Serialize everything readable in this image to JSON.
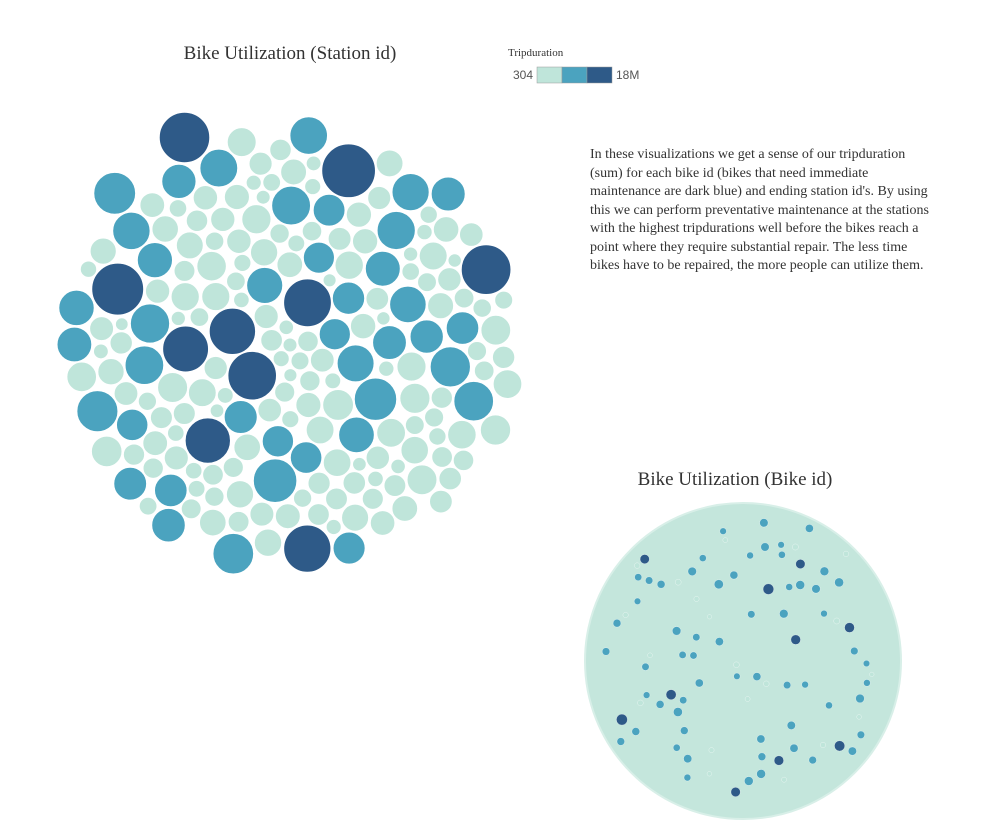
{
  "chart_data": [
    {
      "type": "packed-bubble",
      "title": "Bike Utilization (Station id)",
      "values": [
        18000000,
        16800000,
        15900000,
        15400000,
        14700000,
        14200000,
        13900000,
        13400000,
        13100000,
        12800000,
        11800000,
        11200000,
        10900000,
        10500000,
        10100000,
        9800000,
        9600000,
        9300000,
        9100000,
        8900000,
        8700000,
        8500000,
        8300000,
        8100000,
        7900000,
        7800000,
        7600000,
        7500000,
        7300000,
        7200000,
        7100000,
        6900000,
        6800000,
        6700000,
        6600000,
        6500000,
        6400000,
        6300000,
        6200000,
        6150000,
        6100000,
        6050000,
        6000000,
        9400000,
        8800000,
        7700000,
        7000000,
        6600000,
        10300000,
        8600000,
        5800000,
        5600000,
        5400000,
        5200000,
        5000000,
        4800000,
        4600000,
        4400000,
        4200000,
        4000000,
        3900000,
        3800000,
        3700000,
        3600000,
        3500000,
        3400000,
        3300000,
        3200000,
        3100000,
        3000000,
        2900000,
        2800000,
        2700000,
        2600000,
        2500000,
        2400000,
        2300000,
        2200000,
        2100000,
        2000000,
        1900000,
        1800000,
        1700000,
        1600000,
        1500000,
        1400000,
        1300000,
        1200000,
        1100000,
        1000000,
        5700000,
        5300000,
        4900000,
        4500000,
        4100000,
        3750000,
        3450000,
        3150000,
        2850000,
        2550000,
        2250000,
        1950000,
        1650000,
        1350000,
        1050000,
        5500000,
        5100000,
        4700000,
        4300000,
        3950000,
        3650000,
        3350000,
        3050000,
        2750000,
        2450000,
        2150000,
        1850000,
        1550000,
        1250000,
        1150000,
        4050000,
        3850000,
        3550000,
        3250000,
        2950000,
        2650000,
        2350000,
        2050000,
        1750000,
        1450000,
        5900000,
        5450000,
        4950000,
        4550000,
        4150000,
        3800000,
        3500000,
        3200000,
        2900000,
        2600000,
        2300000,
        2000000,
        1700000,
        1400000,
        1100000,
        4800000,
        4400000,
        3900000,
        3400000,
        2950000,
        2500000,
        2100000,
        1800000,
        1500000,
        1200000,
        5250000,
        4650000,
        4250000,
        3700000,
        3300000,
        2800000,
        2400000,
        1900000,
        1600000,
        1300000,
        5050000,
        4750000,
        4350000,
        3600000,
        3100000,
        2700000,
        2200000,
        1750000,
        1450000,
        1150000,
        5550000,
        4850000,
        4450000,
        3950000,
        3450000,
        3000000,
        2550000,
        2150000,
        1850000,
        1350000,
        5650000,
        5150000,
        4600000,
        4100000,
        3650000,
        3150000,
        2650000,
        2250000,
        1950000,
        1550000,
        1250000,
        1050000,
        3550000,
        2850000,
        2050000
      ]
    },
    {
      "type": "packed-bubble",
      "title": "Bike Utilization (Bike id)",
      "values": [
        2600,
        2450,
        2300,
        2200,
        2100,
        2000,
        1950,
        1900,
        1880,
        1850,
        1800,
        1760,
        1720,
        1700,
        1680,
        1650,
        1620,
        1600,
        1580,
        1550,
        1520,
        1500,
        1480,
        1460,
        1440,
        1420,
        1400,
        1380,
        1360,
        1340,
        1320,
        1300,
        1280,
        1260,
        1240,
        1220,
        1200,
        1180,
        1160,
        1140,
        1120,
        1100,
        1080,
        1060,
        1040,
        1020,
        1000,
        980,
        960,
        940,
        920,
        900,
        1750,
        1610,
        1530,
        1470,
        1390,
        1310,
        1250,
        1190,
        1130,
        1070,
        1010,
        950,
        910,
        1450,
        1350,
        1150,
        1050,
        990,
        800,
        780,
        760,
        740,
        720,
        700,
        680,
        660,
        640,
        620,
        600,
        580,
        560,
        540,
        520,
        500,
        480,
        460,
        440,
        420
      ]
    }
  ],
  "legend": {
    "title": "Tripduration",
    "min": {
      "value": 304,
      "label": "304"
    },
    "max": {
      "value": 18000000,
      "label": "18M"
    },
    "colors": [
      "#bfe5da",
      "#4ba3bf",
      "#2e5a88"
    ]
  },
  "description": "In these visualizations we get a sense of our tripduration (sum) for each bike id (bikes that need immediate maintenance are dark blue) and ending station id's. By using this we can perform preventative maintenance at the stations with the highest tripdurations well before the bikes reach a point where they require substantial repair. The less time bikes have to be repaired, the more people can utilize them."
}
